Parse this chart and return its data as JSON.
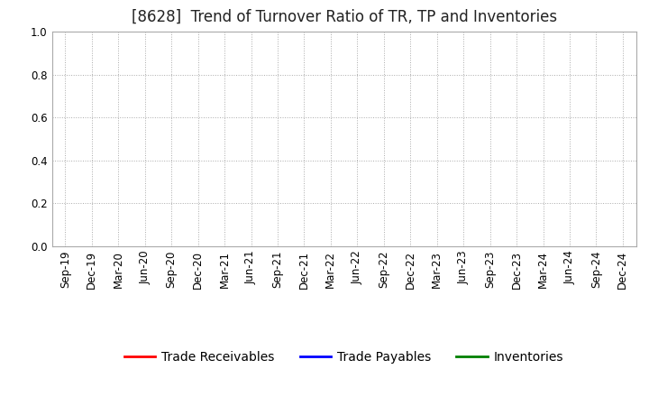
{
  "title": "[8628]  Trend of Turnover Ratio of TR, TP and Inventories",
  "x_labels": [
    "Sep-19",
    "Dec-19",
    "Mar-20",
    "Jun-20",
    "Sep-20",
    "Dec-20",
    "Mar-21",
    "Jun-21",
    "Sep-21",
    "Dec-21",
    "Mar-22",
    "Jun-22",
    "Sep-22",
    "Dec-22",
    "Mar-23",
    "Jun-23",
    "Sep-23",
    "Dec-23",
    "Mar-24",
    "Jun-24",
    "Sep-24",
    "Dec-24"
  ],
  "ylim": [
    0.0,
    1.0
  ],
  "yticks": [
    0.0,
    0.2,
    0.4,
    0.6,
    0.8,
    1.0
  ],
  "series": {
    "Trade Receivables": {
      "color": "#FF0000",
      "data": [
        null,
        null,
        null,
        null,
        null,
        null,
        null,
        null,
        null,
        null,
        null,
        null,
        null,
        null,
        null,
        null,
        null,
        null,
        null,
        null,
        null,
        null
      ]
    },
    "Trade Payables": {
      "color": "#0000FF",
      "data": [
        null,
        null,
        null,
        null,
        null,
        null,
        null,
        null,
        null,
        null,
        null,
        null,
        null,
        null,
        null,
        null,
        null,
        null,
        null,
        null,
        null,
        null
      ]
    },
    "Inventories": {
      "color": "#008000",
      "data": [
        null,
        null,
        null,
        null,
        null,
        null,
        null,
        null,
        null,
        null,
        null,
        null,
        null,
        null,
        null,
        null,
        null,
        null,
        null,
        null,
        null,
        null
      ]
    }
  },
  "background_color": "#FFFFFF",
  "grid_color": "#AAAAAA",
  "title_fontsize": 12,
  "legend_fontsize": 10,
  "tick_fontsize": 8.5
}
